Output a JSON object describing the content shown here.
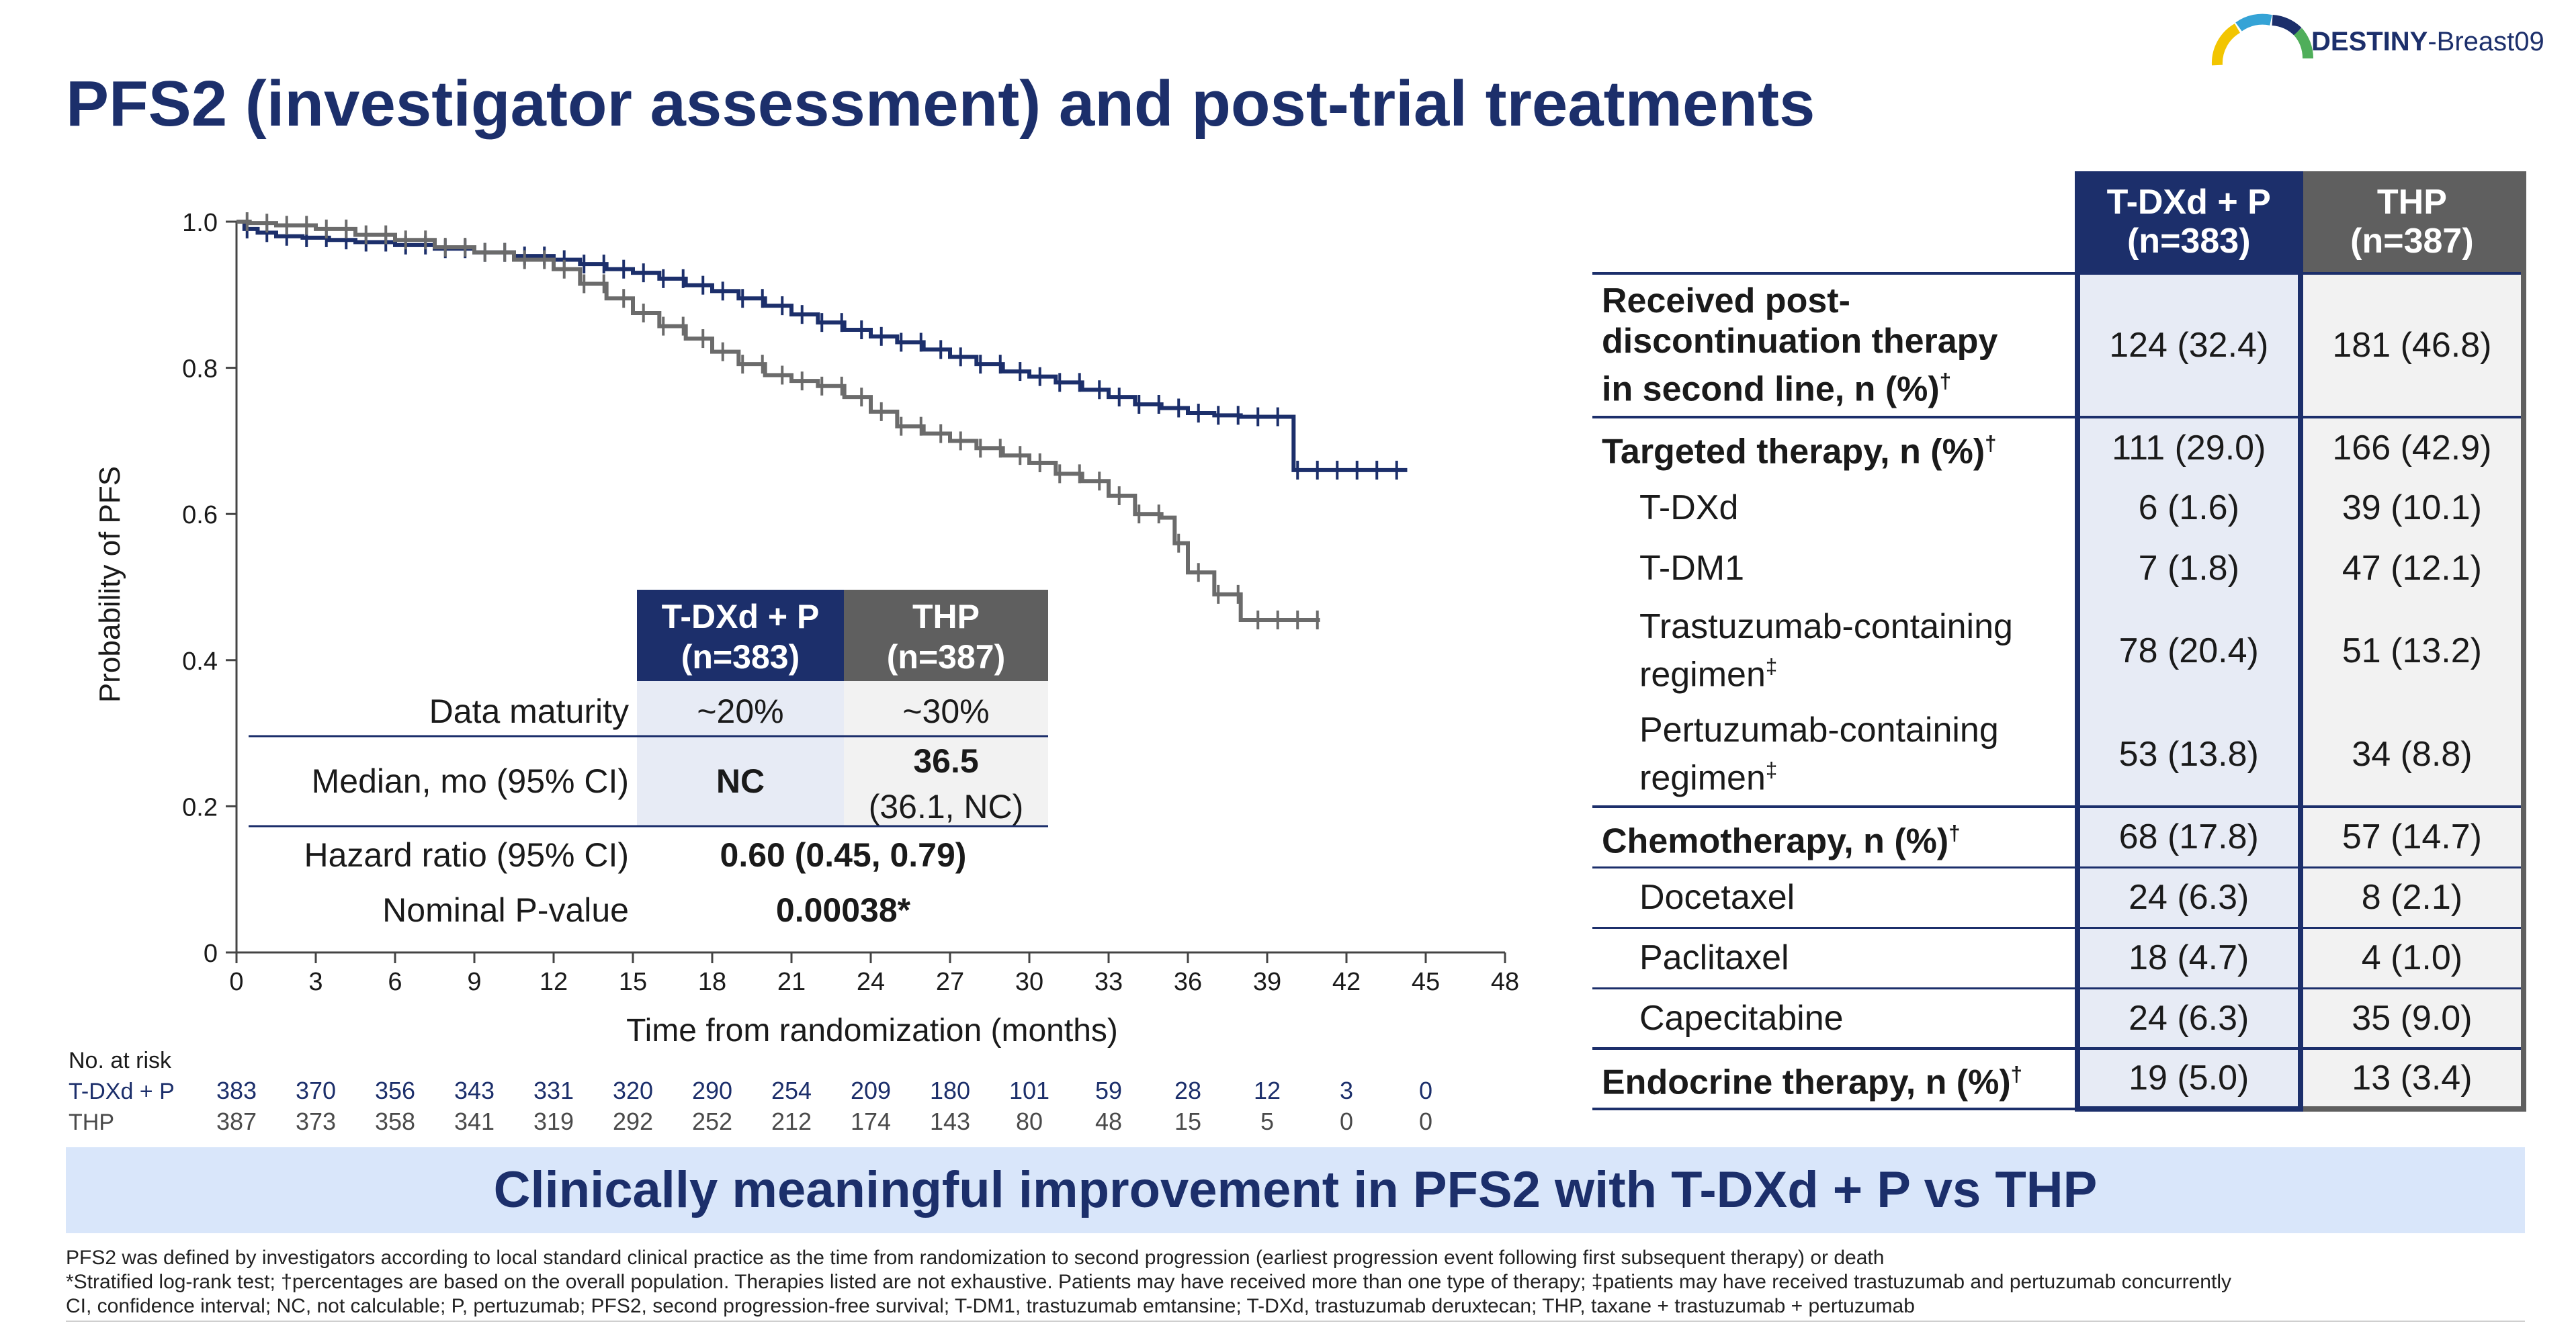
{
  "brand": {
    "logo_name": "DESTINY",
    "logo_suffix": "-Breast09",
    "colors": [
      "#f2c500",
      "#35a3d6",
      "#1c2f6b",
      "#4fae5a"
    ]
  },
  "title": "PFS2 (investigator assessment) and post-trial treatments",
  "chart_data": {
    "type": "line",
    "xlabel": "Time from randomization (months)",
    "ylabel": "Probability of PFS",
    "xlim": [
      0,
      48
    ],
    "ylim": [
      0,
      1.0
    ],
    "x_ticks": [
      0,
      3,
      6,
      9,
      12,
      15,
      18,
      21,
      24,
      27,
      30,
      33,
      36,
      39,
      42,
      45,
      48
    ],
    "y_ticks": [
      0,
      0.2,
      0.4,
      0.6,
      0.8,
      1.0
    ],
    "y_tick_labels": [
      "0",
      "0.2",
      "0.4",
      "0.6",
      "0.8",
      "1.0"
    ],
    "grid": false,
    "series": [
      {
        "name": "T-DXd + P",
        "color": "#1c2f6b",
        "x": [
          0,
          0.3,
          0.8,
          1.5,
          2.5,
          3.5,
          4.5,
          6.0,
          7.5,
          9.0,
          10.5,
          12.0,
          13.0,
          14.0,
          15.0,
          16.0,
          17.0,
          18.0,
          19.0,
          20.0,
          21.0,
          22.0,
          23.0,
          24.0,
          25.0,
          26.0,
          27.0,
          28.0,
          29.0,
          30.0,
          31.0,
          32.0,
          33.0,
          34.0,
          35.0,
          36.0,
          37.0,
          38.0,
          39.0,
          39.5,
          40.0,
          41.0,
          42.0,
          43.0,
          44.3
        ],
        "y": [
          1.0,
          0.99,
          0.985,
          0.98,
          0.978,
          0.975,
          0.972,
          0.968,
          0.963,
          0.958,
          0.953,
          0.948,
          0.942,
          0.935,
          0.93,
          0.922,
          0.913,
          0.905,
          0.895,
          0.885,
          0.873,
          0.862,
          0.852,
          0.843,
          0.835,
          0.825,
          0.815,
          0.805,
          0.795,
          0.788,
          0.78,
          0.77,
          0.76,
          0.75,
          0.745,
          0.738,
          0.735,
          0.733,
          0.733,
          0.733,
          0.66,
          0.66,
          0.66,
          0.66,
          0.66
        ],
        "at_risk": [
          383,
          370,
          356,
          343,
          331,
          320,
          290,
          254,
          209,
          180,
          101,
          59,
          28,
          12,
          3,
          0
        ]
      },
      {
        "name": "THP",
        "color": "#6b6b6b",
        "x": [
          0,
          0.5,
          1.5,
          3.0,
          4.5,
          6.0,
          7.5,
          9.0,
          10.5,
          12.0,
          13.0,
          14.0,
          15.0,
          16.0,
          17.0,
          18.0,
          19.0,
          20.0,
          21.0,
          22.0,
          23.0,
          24.0,
          25.0,
          26.0,
          27.0,
          28.0,
          29.0,
          30.0,
          31.0,
          32.0,
          33.0,
          34.0,
          35.0,
          35.5,
          36.0,
          37.0,
          38.0,
          39.0,
          40.0,
          41.0
        ],
        "y": [
          1.0,
          0.998,
          0.995,
          0.99,
          0.982,
          0.975,
          0.965,
          0.958,
          0.948,
          0.935,
          0.915,
          0.895,
          0.875,
          0.857,
          0.84,
          0.822,
          0.805,
          0.79,
          0.782,
          0.775,
          0.76,
          0.74,
          0.72,
          0.71,
          0.7,
          0.69,
          0.68,
          0.67,
          0.655,
          0.645,
          0.625,
          0.6,
          0.595,
          0.56,
          0.52,
          0.49,
          0.455,
          0.455,
          0.455,
          0.455
        ],
        "at_risk": [
          387,
          373,
          358,
          341,
          319,
          292,
          252,
          212,
          174,
          143,
          80,
          48,
          15,
          5,
          0,
          0
        ]
      }
    ],
    "at_risk_label": "No. at risk"
  },
  "inset_table": {
    "headers": [
      "T-DXd + P\n(n=383)",
      "THP\n(n=387)"
    ],
    "header_line1": [
      "T-DXd + P",
      "THP"
    ],
    "header_line2": [
      "(n=383)",
      "(n=387)"
    ],
    "rows": [
      {
        "label": "Data maturity",
        "a": "~20%",
        "b": "~30%"
      },
      {
        "label": "Median, mo (95% CI)",
        "a": "NC",
        "b": "36.5",
        "b2": "(36.1, NC)"
      }
    ],
    "hazard_label": "Hazard ratio (95% CI)",
    "hazard_value": "0.60 (0.45, 0.79)",
    "p_label": "Nominal P-value",
    "p_value": "0.00038*"
  },
  "right_table": {
    "col1_l1": "T-DXd + P",
    "col1_l2": "(n=383)",
    "col2_l1": "THP",
    "col2_l2": "(n=387)",
    "rows": [
      {
        "label": "Received post-discontinuation therapy in second line, n (%)†",
        "l1": "Received post-",
        "l2": "discontinuation therapy",
        "l3": "in second line, n (%)",
        "sup": "†",
        "a": "124 (32.4)",
        "b": "181 (46.8)",
        "bold": true
      },
      {
        "label": "Targeted therapy, n (%)",
        "sup": "†",
        "a": "111 (29.0)",
        "b": "166 (42.9)",
        "bold": true
      },
      {
        "label": "T-DXd",
        "a": "6 (1.6)",
        "b": "39 (10.1)"
      },
      {
        "label": "T-DM1",
        "a": "7 (1.8)",
        "b": "47 (12.1)"
      },
      {
        "l1": "Trastuzumab-containing",
        "l2": "regimen",
        "sup": "‡",
        "a": "78 (20.4)",
        "b": "51 (13.2)"
      },
      {
        "l1": "Pertuzumab-containing",
        "l2": "regimen",
        "sup": "‡",
        "a": "53 (13.8)",
        "b": "34 (8.8)"
      },
      {
        "label": "Chemotherapy, n (%)",
        "sup": "†",
        "a": "68 (17.8)",
        "b": "57 (14.7)",
        "bold": true
      },
      {
        "label": "Docetaxel",
        "a": "24 (6.3)",
        "b": "8 (2.1)"
      },
      {
        "label": "Paclitaxel",
        "a": "18 (4.7)",
        "b": "4 (1.0)"
      },
      {
        "label": "Capecitabine",
        "a": "24 (6.3)",
        "b": "35 (9.0)"
      },
      {
        "label": "Endocrine therapy, n (%)",
        "sup": "†",
        "a": "19 (5.0)",
        "b": "13 (3.4)",
        "bold": true
      }
    ]
  },
  "banner": "Clinically meaningful improvement in PFS2 with T-DXd + P vs THP",
  "footnotes": [
    "PFS2 was defined by investigators according to local standard clinical practice as the time from randomization to second progression (earliest progression event following first subsequent therapy) or death",
    "*Stratified log-rank test; †percentages are based on the overall population. Therapies listed are not exhaustive. Patients may have received more than one type of therapy; ‡patients may have received trastuzumab and pertuzumab concurrently",
    "CI, confidence interval; NC, not calculable; P, pertuzumab; PFS2, second progression-free survival; T-DM1, trastuzumab emtansine; T-DXd, trastuzumab deruxtecan; THP, taxane + trastuzumab + pertuzumab"
  ]
}
